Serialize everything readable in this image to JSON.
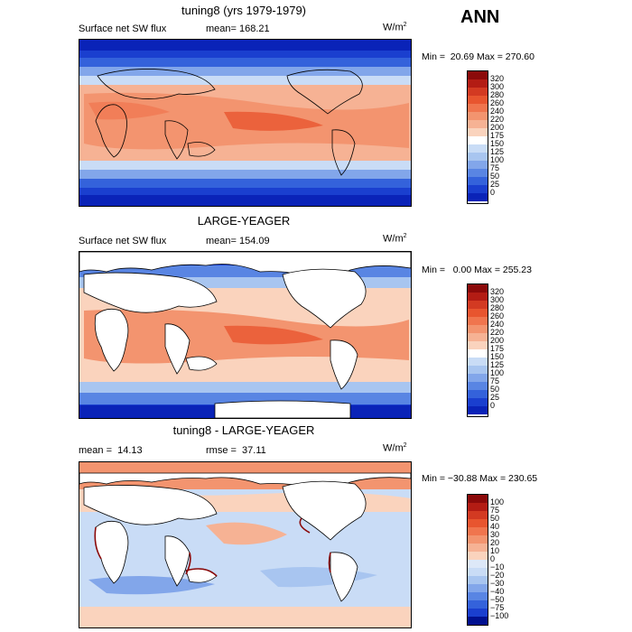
{
  "season": "ANN",
  "panels": [
    {
      "title": "tuning8 (yrs 1979-1979)",
      "left_label": "Surface net SW flux",
      "middle_label": "mean= 168.21",
      "unit": "W/m",
      "unit_sup": "2",
      "minmax": "Min =  20.69 Max = 270.60",
      "colorbar": [
        "320",
        "300",
        "280",
        "260",
        "240",
        "220",
        "200",
        "175",
        "150",
        "125",
        "100",
        "75",
        "50",
        "25",
        "0"
      ],
      "colors": [
        "#8b0a0a",
        "#b31c14",
        "#d33a22",
        "#e8552f",
        "#f0754e",
        "#f3946f",
        "#f6b294",
        "#fad3bd",
        "#ffffff",
        "#c9dcf6",
        "#a8c5f0",
        "#82a6ea",
        "#5985e3",
        "#3462db",
        "#1a3fcf",
        "#0a23b8",
        "#00108f"
      ]
    },
    {
      "title": "LARGE-YEAGER",
      "left_label": "Surface net SW flux",
      "middle_label": "mean= 154.09",
      "unit": "W/m",
      "unit_sup": "2",
      "minmax": "Min =   0.00 Max = 255.23",
      "colorbar": [
        "320",
        "300",
        "280",
        "260",
        "240",
        "220",
        "200",
        "175",
        "150",
        "125",
        "100",
        "75",
        "50",
        "25",
        "0"
      ]
    },
    {
      "title": "tuning8 - LARGE-YEAGER",
      "left_label": "mean =  14.13",
      "middle_label": "rmse =  37.11",
      "unit": "W/m",
      "unit_sup": "2",
      "minmax": "Min = −30.88 Max = 230.65",
      "colorbar": [
        "100",
        "75",
        "50",
        "40",
        "30",
        "20",
        "10",
        "0",
        "−10",
        "−20",
        "−30",
        "−40",
        "−50",
        "−75",
        "−100"
      ]
    }
  ]
}
